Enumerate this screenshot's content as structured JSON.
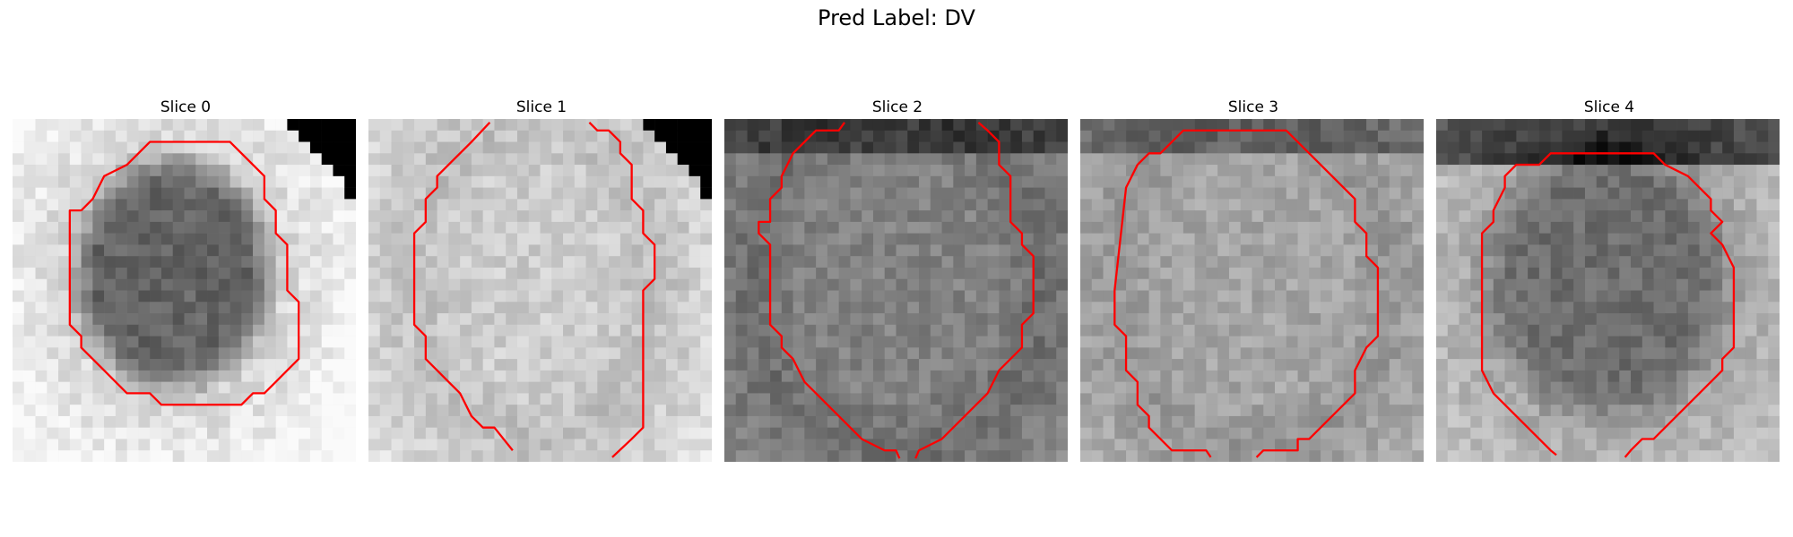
{
  "figure": {
    "title": "Pred Label: DV"
  },
  "slices": [
    {
      "title": "Slice 0"
    },
    {
      "title": "Slice 1"
    },
    {
      "title": "Slice 2"
    },
    {
      "title": "Slice 3"
    },
    {
      "title": "Slice 4"
    }
  ],
  "colors": {
    "contour": "#ff0000",
    "background": "#ffffff"
  }
}
